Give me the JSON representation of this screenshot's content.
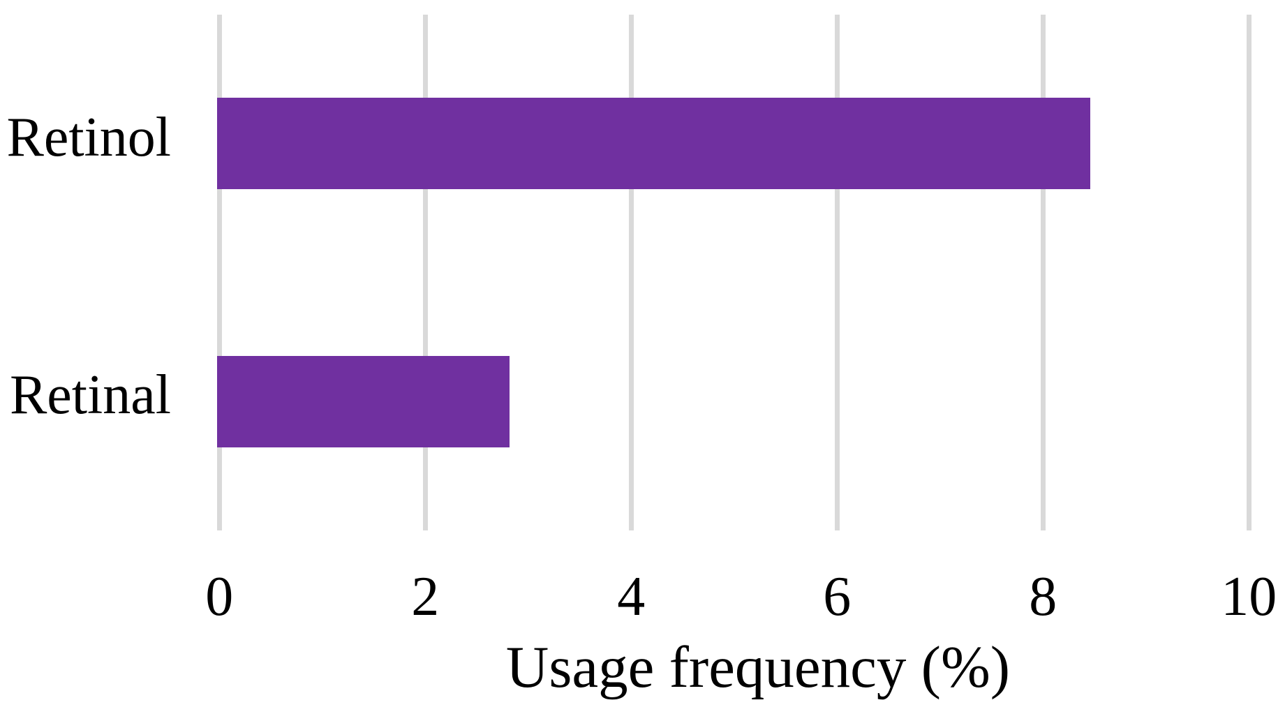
{
  "chart_data": {
    "type": "bar",
    "orientation": "horizontal",
    "title": "",
    "xlabel": "Usage frequency (%)",
    "ylabel": "",
    "categories": [
      "Retinol",
      "Retinal"
    ],
    "values": [
      8.46,
      2.82
    ],
    "xlim": [
      0,
      10
    ],
    "xticks": [
      0,
      2,
      4,
      6,
      8,
      10
    ],
    "grid": "vertical-gridlines-on",
    "legend": "none",
    "colors": {
      "bar": "#7030A0",
      "gridline": "#D9D9D9",
      "text": "#000000",
      "background": "#FFFFFF"
    }
  }
}
